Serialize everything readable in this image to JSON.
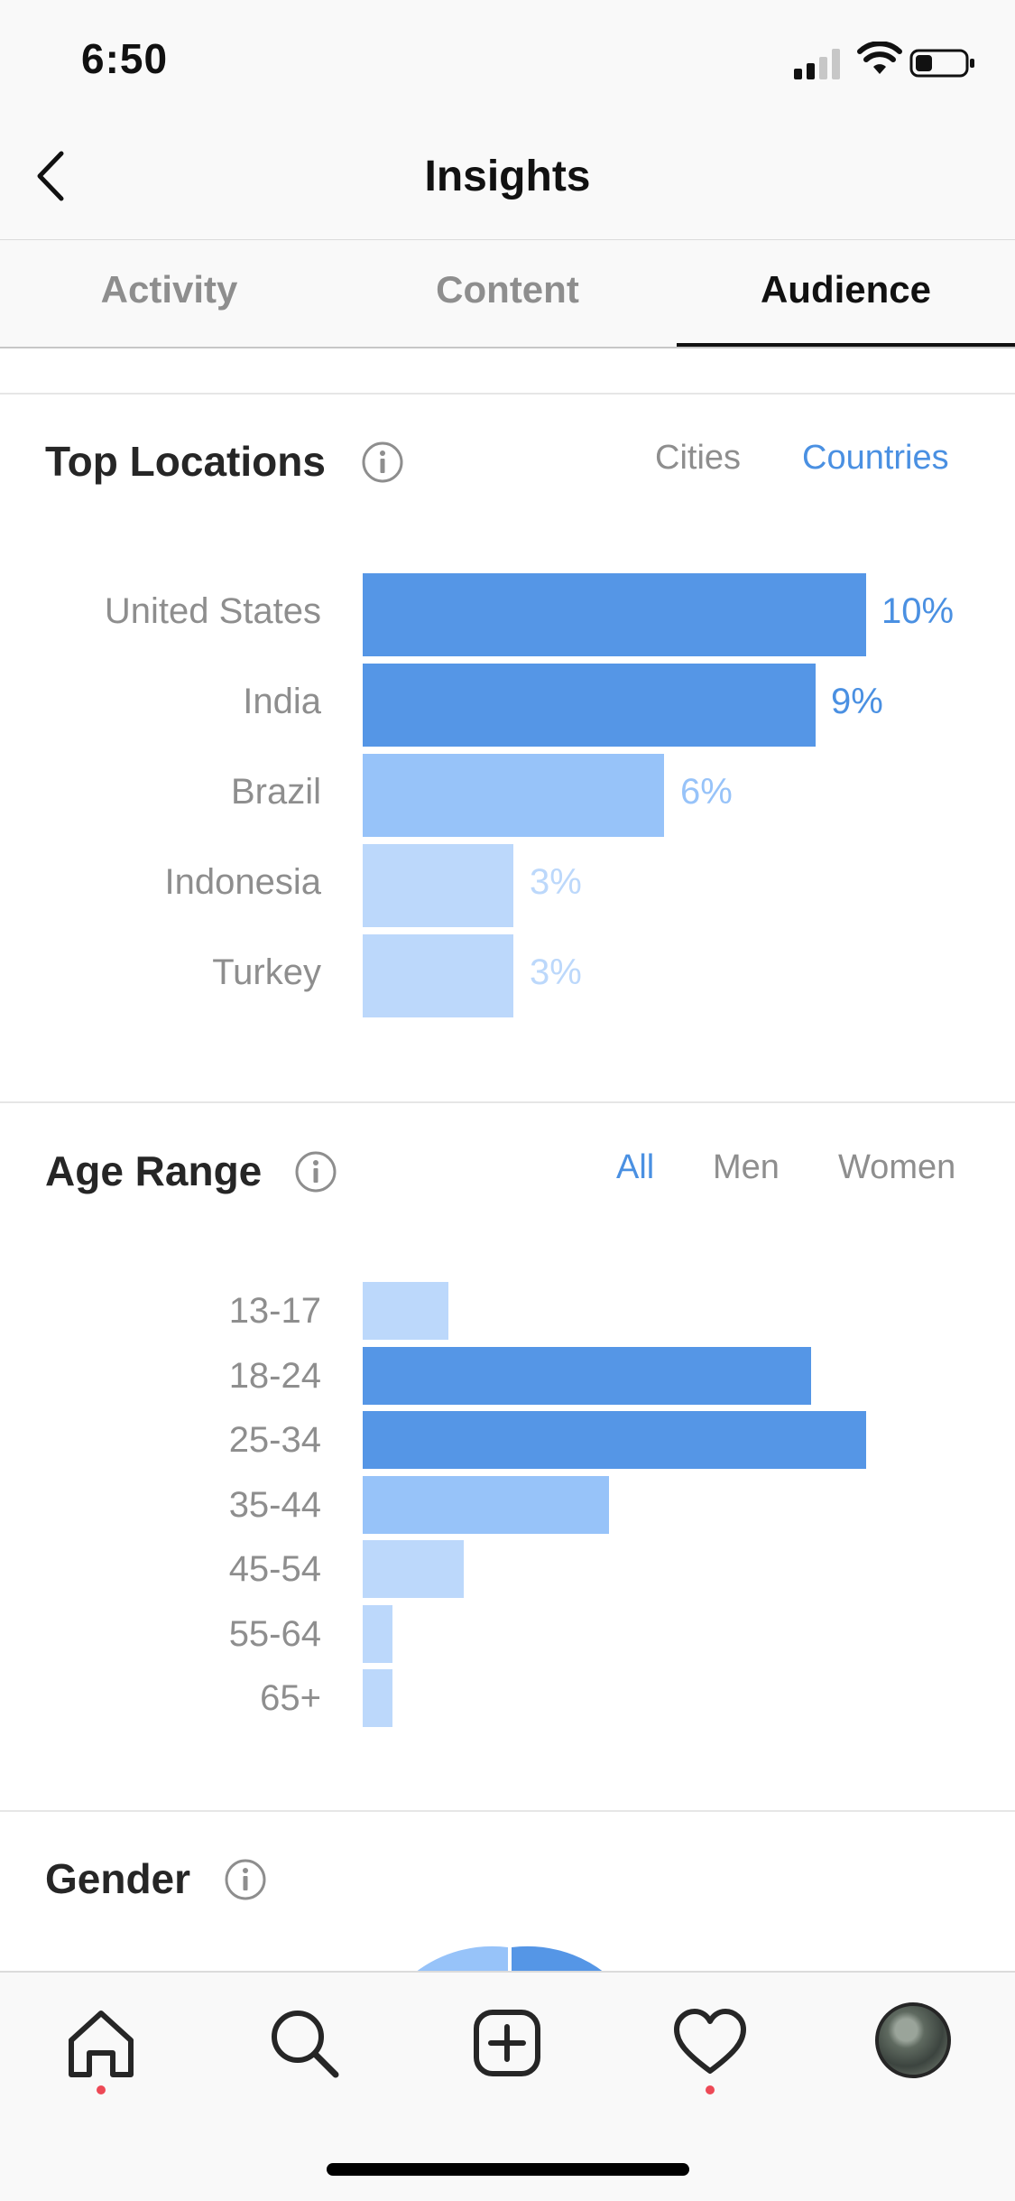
{
  "status_bar": {
    "time": "6:50"
  },
  "header": {
    "title": "Insights"
  },
  "tabs": [
    {
      "label": "Activity",
      "active": false
    },
    {
      "label": "Content",
      "active": false
    },
    {
      "label": "Audience",
      "active": true
    }
  ],
  "top_locations": {
    "title": "Top Locations",
    "filters": [
      {
        "label": "Cities",
        "active": false
      },
      {
        "label": "Countries",
        "active": true
      }
    ],
    "rows": [
      {
        "label": "United States",
        "value": "10%"
      },
      {
        "label": "India",
        "value": "9%"
      },
      {
        "label": "Brazil",
        "value": "6%"
      },
      {
        "label": "Indonesia",
        "value": "3%"
      },
      {
        "label": "Turkey",
        "value": "3%"
      }
    ]
  },
  "age_range": {
    "title": "Age Range",
    "filters": [
      {
        "label": "All",
        "active": true
      },
      {
        "label": "Men",
        "active": false
      },
      {
        "label": "Women",
        "active": false
      }
    ],
    "rows": [
      {
        "label": "13-17",
        "share": 0.17
      },
      {
        "label": "18-24",
        "share": 0.89
      },
      {
        "label": "25-34",
        "share": 1.0
      },
      {
        "label": "35-44",
        "share": 0.49
      },
      {
        "label": "45-54",
        "share": 0.2
      },
      {
        "label": "55-64",
        "share": 0.06
      },
      {
        "label": "65+",
        "share": 0.06
      }
    ]
  },
  "gender": {
    "title": "Gender"
  },
  "colors": {
    "accent": "#4a90e2",
    "bar_strong": "#5596e6",
    "bar_medium": "#97c3f9",
    "bar_light": "#bcd8fb",
    "notification": "#ed4956"
  },
  "nav": {
    "items": [
      "home-icon",
      "search-icon",
      "new-post-icon",
      "activity-heart-icon",
      "profile-avatar"
    ]
  }
}
